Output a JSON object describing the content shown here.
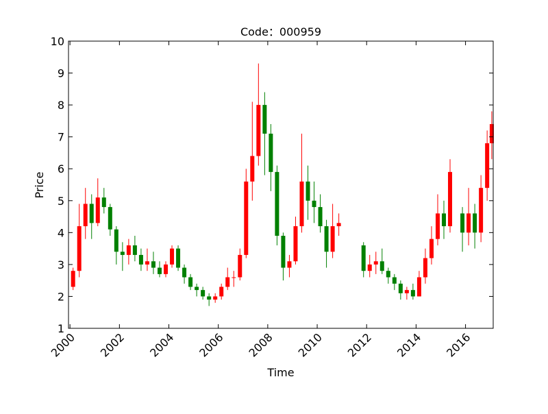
{
  "chart_data": {
    "type": "candlestick",
    "title": "Code：000959",
    "xlabel": "Time",
    "ylabel": "Price",
    "up_color": "red",
    "down_color": "green",
    "x": [
      2000.125,
      2000.375,
      2000.625,
      2000.875,
      2001.125,
      2001.375,
      2001.625,
      2001.875,
      2002.125,
      2002.375,
      2002.625,
      2002.875,
      2003.125,
      2003.375,
      2003.625,
      2003.875,
      2004.125,
      2004.375,
      2004.625,
      2004.875,
      2005.125,
      2005.375,
      2005.625,
      2005.875,
      2006.125,
      2006.375,
      2006.625,
      2006.875,
      2007.125,
      2007.375,
      2007.625,
      2007.875,
      2008.125,
      2008.375,
      2008.625,
      2008.875,
      2009.125,
      2009.375,
      2009.625,
      2009.875,
      2010.125,
      2010.375,
      2010.625,
      2010.875,
      2011.875,
      2012.125,
      2012.375,
      2012.625,
      2012.875,
      2013.125,
      2013.375,
      2013.625,
      2013.875,
      2014.125,
      2014.375,
      2014.625,
      2014.875,
      2015.125,
      2015.375,
      2015.875,
      2016.125,
      2016.375,
      2016.625,
      2016.875,
      2017.0625
    ],
    "open": [
      2.3,
      2.8,
      4.2,
      4.9,
      4.3,
      5.1,
      4.8,
      4.1,
      3.4,
      3.3,
      3.6,
      3.3,
      3.0,
      3.1,
      2.9,
      2.7,
      3.0,
      3.5,
      2.9,
      2.6,
      2.3,
      2.2,
      2.0,
      1.9,
      2.0,
      2.3,
      2.6,
      2.6,
      3.3,
      5.6,
      6.4,
      8.0,
      7.1,
      5.9,
      3.9,
      2.9,
      3.1,
      4.2,
      5.6,
      5.0,
      4.8,
      4.2,
      3.4,
      4.2,
      3.6,
      2.8,
      3.0,
      3.1,
      2.8,
      2.6,
      2.4,
      2.1,
      2.2,
      2.0,
      2.6,
      3.2,
      3.8,
      4.6,
      4.2,
      4.6,
      4.0,
      4.6,
      4.0,
      5.4,
      6.8
    ],
    "high": [
      2.9,
      4.9,
      5.4,
      5.2,
      5.7,
      5.4,
      4.9,
      4.2,
      3.7,
      3.8,
      3.9,
      3.5,
      3.5,
      3.4,
      3.1,
      3.1,
      3.6,
      3.6,
      3.0,
      2.7,
      2.4,
      2.3,
      2.1,
      2.1,
      2.4,
      2.9,
      2.8,
      3.5,
      6.0,
      8.1,
      9.3,
      8.4,
      7.4,
      6.1,
      4.0,
      3.3,
      4.5,
      7.1,
      6.1,
      5.6,
      5.2,
      4.4,
      4.9,
      4.6,
      3.7,
      3.3,
      3.4,
      3.5,
      2.9,
      2.7,
      2.5,
      2.3,
      2.4,
      2.8,
      3.5,
      4.2,
      5.2,
      5.0,
      6.3,
      4.8,
      5.4,
      4.9,
      5.8,
      7.2,
      7.8
    ],
    "low": [
      2.2,
      2.6,
      3.8,
      3.8,
      4.2,
      4.6,
      3.9,
      3.0,
      2.8,
      3.0,
      3.1,
      2.8,
      2.8,
      2.7,
      2.6,
      2.6,
      2.9,
      2.8,
      2.4,
      2.2,
      2.0,
      1.9,
      1.7,
      1.8,
      1.9,
      2.2,
      2.3,
      2.5,
      3.2,
      5.0,
      6.1,
      5.8,
      5.3,
      3.6,
      2.5,
      2.6,
      3.0,
      4.0,
      4.4,
      4.3,
      4.0,
      2.9,
      3.2,
      3.9,
      2.6,
      2.6,
      2.7,
      2.7,
      2.4,
      2.2,
      1.9,
      1.9,
      1.9,
      2.0,
      2.4,
      3.0,
      3.6,
      3.8,
      4.0,
      3.4,
      3.6,
      3.5,
      3.7,
      5.0,
      6.3
    ],
    "close": [
      2.8,
      4.2,
      4.9,
      4.3,
      5.1,
      4.8,
      4.1,
      3.4,
      3.3,
      3.6,
      3.3,
      3.0,
      3.1,
      2.9,
      2.7,
      3.0,
      3.5,
      2.9,
      2.6,
      2.3,
      2.2,
      2.0,
      1.9,
      2.0,
      2.3,
      2.6,
      2.6,
      3.3,
      5.6,
      6.4,
      8.0,
      7.1,
      5.9,
      3.9,
      2.9,
      3.1,
      4.2,
      5.6,
      5.0,
      4.8,
      4.2,
      3.4,
      4.2,
      4.3,
      2.8,
      3.0,
      3.1,
      2.8,
      2.6,
      2.4,
      2.1,
      2.2,
      2.0,
      2.6,
      3.2,
      3.8,
      4.6,
      4.2,
      5.9,
      4.0,
      4.6,
      4.0,
      5.4,
      6.8,
      7.4
    ],
    "xlim": [
      1999.94,
      2017.12
    ],
    "xticks": [
      2000,
      2002,
      2004,
      2006,
      2008,
      2010,
      2012,
      2014,
      2016
    ],
    "ylim": [
      1,
      10
    ],
    "yticks": [
      1,
      2,
      3,
      4,
      5,
      6,
      7,
      8,
      9,
      10
    ]
  }
}
